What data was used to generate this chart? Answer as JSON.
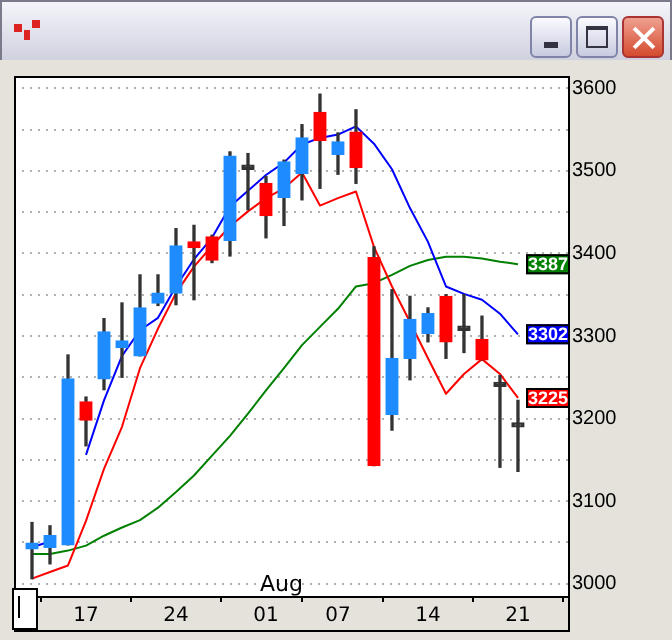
{
  "chart_data": {
    "type": "candlestick",
    "categories": [
      null,
      null,
      null,
      "17",
      null,
      null,
      null,
      null,
      "24",
      null,
      null,
      null,
      null,
      "01",
      null,
      null,
      null,
      "07",
      null,
      null,
      null,
      null,
      "14",
      null,
      null,
      null,
      null,
      "21"
    ],
    "ohlc": [
      [
        3042,
        3074,
        3006,
        3049
      ],
      [
        3044,
        3070,
        3024,
        3058
      ],
      [
        3047,
        3277,
        3047,
        3248
      ],
      [
        3220,
        3226,
        3167,
        3198
      ],
      [
        3248,
        3321,
        3235,
        3305
      ],
      [
        3286,
        3340,
        3250,
        3294
      ],
      [
        3276,
        3374,
        3276,
        3334
      ],
      [
        3340,
        3374,
        3337,
        3352
      ],
      [
        3352,
        3430,
        3338,
        3409
      ],
      [
        3414,
        3434,
        3344,
        3407
      ],
      [
        3420,
        3422,
        3389,
        3392
      ],
      [
        3416,
        3523,
        3397,
        3518
      ],
      [
        3502,
        3521,
        3453,
        3502
      ],
      [
        3485,
        3493,
        3419,
        3446
      ],
      [
        3468,
        3513,
        3434,
        3511
      ],
      [
        3497,
        3556,
        3465,
        3540
      ],
      [
        3571,
        3593,
        3479,
        3537
      ],
      [
        3520,
        3546,
        3496,
        3535
      ],
      [
        3547,
        3574,
        3485,
        3504
      ],
      [
        3395,
        3408,
        3143,
        3143
      ],
      [
        3205,
        3356,
        3186,
        3273
      ],
      [
        3273,
        3348,
        3247,
        3320
      ],
      [
        3303,
        3334,
        3293,
        3327
      ],
      [
        3348,
        3350,
        3273,
        3293
      ],
      [
        3307,
        3350,
        3280,
        3307
      ],
      [
        3296,
        3324,
        3271,
        3271
      ],
      [
        3239,
        3252,
        3141,
        3239
      ],
      [
        3190,
        3222,
        3136,
        3190
      ]
    ],
    "colors": [
      "#1e8cff",
      "#1e8cff",
      "#1e8cff",
      "#ff0000",
      "#1e8cff",
      "#1e8cff",
      "#1e8cff",
      "#1e8cff",
      "#1e8cff",
      "#ff0000",
      "#ff0000",
      "#1e8cff",
      "#333333",
      "#ff0000",
      "#1e8cff",
      "#1e8cff",
      "#ff0000",
      "#1e8cff",
      "#ff0000",
      "#ff0000",
      "#1e8cff",
      "#1e8cff",
      "#1e8cff",
      "#ff0000",
      "#333333",
      "#ff0000",
      "#333333",
      "#333333"
    ],
    "series": [
      {
        "type": "line",
        "color": "#0000ff",
        "values": [
          3044,
          3051,
          null,
          3156,
          3222,
          3276,
          3307,
          3322,
          3360,
          3393,
          3419,
          3457,
          3476,
          3495,
          3510,
          3532,
          3540,
          3544,
          3554,
          3533,
          3502,
          3455,
          3414,
          3360,
          3351,
          3344,
          3327,
          3302
        ],
        "value_labels": [
          null,
          null,
          null,
          null,
          null,
          null,
          null,
          null,
          null,
          null,
          null,
          null,
          null,
          null,
          null,
          null,
          null,
          null,
          null,
          null,
          null,
          null,
          null,
          null,
          null,
          null,
          null,
          "3302"
        ]
      },
      {
        "type": "line",
        "color": "#ff0000",
        "values": [
          3006,
          3014,
          3022,
          3076,
          3139,
          3190,
          3261,
          3309,
          3352,
          3384,
          3409,
          3433,
          3451,
          3467,
          3479,
          3498,
          3458,
          3467,
          3475,
          3408,
          3360,
          3317,
          3273,
          3230,
          3254,
          3272,
          3254,
          3225
        ],
        "value_labels": [
          null,
          null,
          null,
          null,
          null,
          null,
          null,
          null,
          null,
          null,
          null,
          null,
          null,
          null,
          null,
          null,
          null,
          null,
          null,
          null,
          null,
          null,
          null,
          null,
          null,
          null,
          null,
          "3225"
        ]
      },
      {
        "type": "line",
        "color": "#008000",
        "values": [
          3036,
          3036,
          3040,
          3046,
          3058,
          3068,
          3077,
          3092,
          3111,
          3131,
          3155,
          3179,
          3206,
          3234,
          3261,
          3289,
          3311,
          3333,
          3360,
          3364,
          3374,
          3385,
          3392,
          3396,
          3396,
          3394,
          3390,
          3387
        ],
        "value_labels": [
          null,
          null,
          null,
          null,
          null,
          null,
          null,
          null,
          null,
          null,
          null,
          null,
          null,
          null,
          null,
          null,
          null,
          null,
          null,
          null,
          null,
          null,
          null,
          null,
          null,
          null,
          null,
          "3387"
        ]
      }
    ],
    "ylim": [
      2985,
      3615
    ],
    "yticks": [
      3000,
      {
        "value": 3050,
        "label": null
      },
      3100,
      {
        "value": 3150,
        "label": null
      },
      3200,
      {
        "value": 3250,
        "label": null
      },
      3300,
      {
        "value": 3350,
        "label": null
      },
      3400,
      {
        "value": 3450,
        "label": null
      },
      3500,
      {
        "value": 3550,
        "label": null
      },
      3600
    ],
    "grid": "y",
    "legend": false,
    "line_style": "solid",
    "marker": "none",
    "annotations": [
      "Aug"
    ]
  }
}
